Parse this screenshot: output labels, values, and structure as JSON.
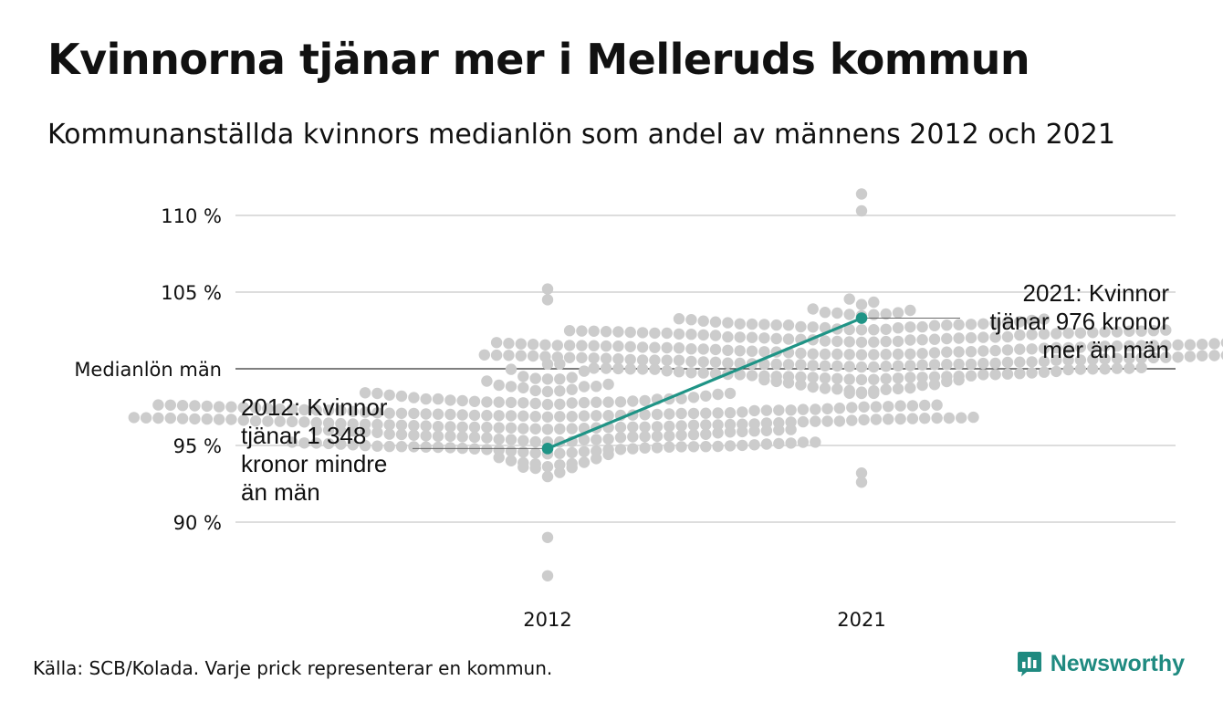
{
  "header": {
    "title": "Kvinnorna tjänar mer i Melleruds kommun",
    "subtitle": "Kommunanställda kvinnors medianlön som andel av männens 2012 och 2021"
  },
  "footer": {
    "source": "Källa: SCB/Kolada. Varje prick representerar en kommun.",
    "logo_text": "Newsworthy"
  },
  "colors": {
    "dots": "#cccccc",
    "highlight": "#1f9486",
    "grid": "#dddddd",
    "reference_line": "#333333",
    "brand": "#1f8a80"
  },
  "chart_data": {
    "type": "scatter",
    "subtype": "beeswarm",
    "categories": [
      "2012",
      "2021"
    ],
    "y_tick_labels": [
      "90 %",
      "95 %",
      "Medianlön män",
      "105 %",
      "110 %"
    ],
    "y_ticks": [
      90,
      95,
      100,
      105,
      110
    ],
    "ylim": [
      86,
      111.5
    ],
    "reference_value": 100,
    "grid": true,
    "highlight": {
      "series": [
        {
          "x": "2012",
          "y": 94.8
        },
        {
          "x": "2021",
          "y": 103.3
        }
      ],
      "annotations": [
        {
          "x": "2012",
          "lines": [
            "2012: Kvinnor",
            "tjänar 1 348",
            "kronor mindre",
            "än män"
          ]
        },
        {
          "x": "2021",
          "lines": [
            "2021: Kvinnor",
            "tjänar 976 kronor",
            "mer än män"
          ]
        }
      ]
    },
    "distributions": [
      {
        "category": "2012",
        "min": 86.5,
        "max": 105.2,
        "center": 96.5,
        "outliers": [
          86.5,
          89.0,
          104.5,
          105.2
        ]
      },
      {
        "category": "2021",
        "min": 92.6,
        "max": 111.4,
        "center": 101.0,
        "outliers": [
          92.6,
          93.2,
          110.3,
          111.4
        ]
      }
    ]
  }
}
